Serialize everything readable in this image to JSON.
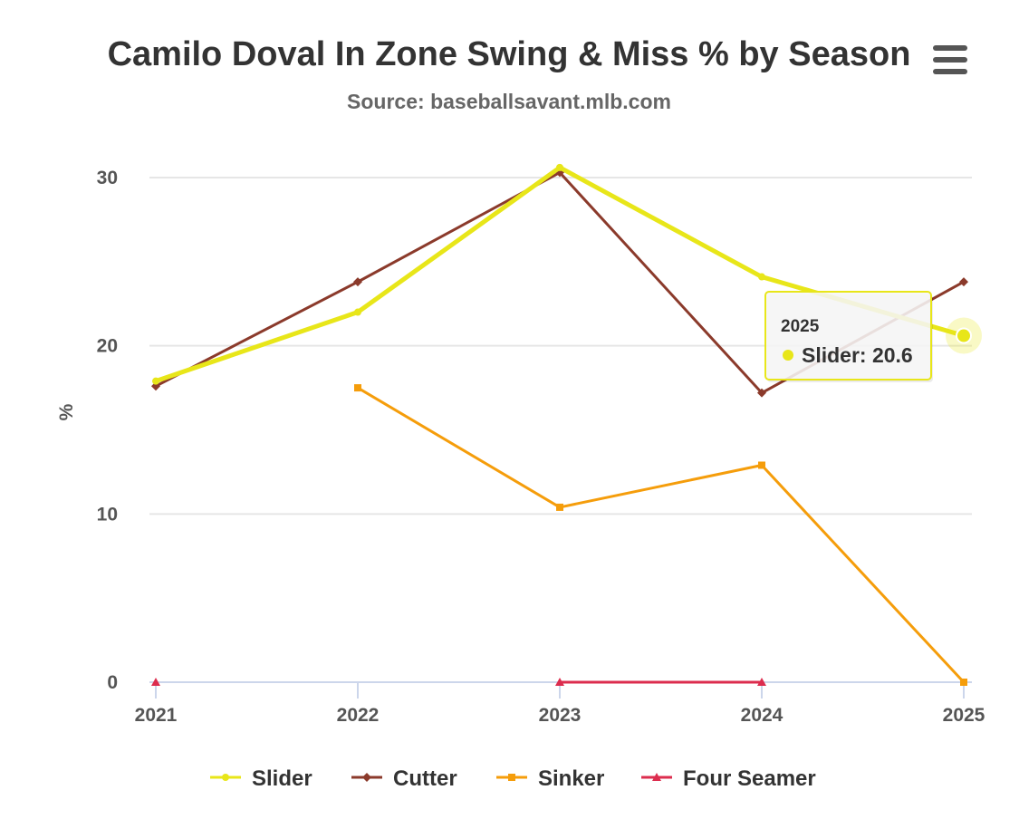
{
  "chart_data": {
    "type": "line",
    "title": "Camilo Doval In Zone Swing & Miss % by Season",
    "subtitle": "Source: baseballsavant.mlb.com",
    "xlabel": "",
    "ylabel": "%",
    "categories": [
      "2021",
      "2022",
      "2023",
      "2024",
      "2025"
    ],
    "ylim": [
      0,
      30
    ],
    "yticks": [
      0,
      10,
      20,
      30
    ],
    "grid": true,
    "legend_position": "bottom-center",
    "series": [
      {
        "name": "Slider",
        "color": "#e8e619",
        "marker": "circle",
        "values": [
          17.9,
          22.0,
          30.6,
          24.1,
          20.6
        ]
      },
      {
        "name": "Cutter",
        "color": "#8b3a2b",
        "marker": "diamond",
        "values": [
          17.6,
          23.8,
          30.3,
          17.2,
          23.8
        ]
      },
      {
        "name": "Sinker",
        "color": "#f59d0b",
        "marker": "square",
        "values": [
          null,
          17.5,
          10.4,
          12.9,
          0
        ]
      },
      {
        "name": "Four Seamer",
        "color": "#dc2d4e",
        "marker": "triangle",
        "values": [
          0,
          null,
          0,
          0,
          null
        ]
      }
    ],
    "tooltip": {
      "header": "2025",
      "series": "Slider",
      "label": "Slider: 20.6",
      "category_index": 4,
      "series_index": 0
    }
  },
  "menu": {
    "icon": "hamburger-menu-icon"
  }
}
